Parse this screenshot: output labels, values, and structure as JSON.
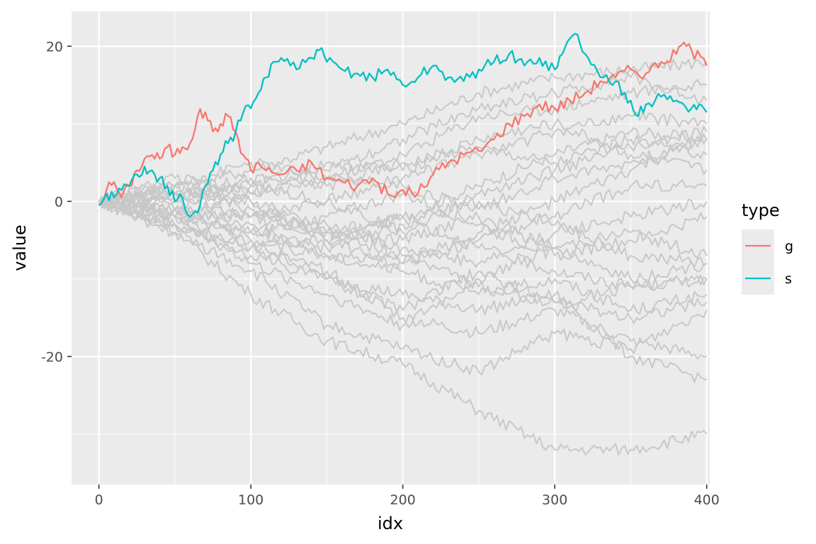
{
  "chart_data": {
    "type": "line",
    "xlabel": "idx",
    "ylabel": "value",
    "xlim": [
      -18,
      402
    ],
    "ylim": [
      -36.5,
      24.5
    ],
    "x_ticks": [
      0,
      100,
      200,
      300,
      400
    ],
    "x_tick_labels": [
      "0",
      "100",
      "200",
      "300",
      "400"
    ],
    "y_ticks": [
      -20,
      0,
      20
    ],
    "y_tick_labels": [
      "-20",
      "0",
      "20"
    ],
    "grid": true,
    "legend": {
      "title": "type",
      "position": "right",
      "entries": [
        {
          "label": "g",
          "color": "#F8766D"
        },
        {
          "label": "s",
          "color": "#00BFC4"
        }
      ]
    },
    "background_color": "#EBEBEB",
    "background_series_color": "#C8C8C8",
    "series": [
      {
        "name": "g",
        "color": "#F8766D",
        "x": [
          0,
          5,
          10,
          15,
          20,
          25,
          30,
          35,
          40,
          45,
          50,
          55,
          60,
          65,
          70,
          75,
          80,
          85,
          90,
          95,
          100,
          105,
          110,
          120,
          130,
          140,
          150,
          160,
          170,
          180,
          190,
          195,
          200,
          210,
          220,
          230,
          240,
          250,
          260,
          270,
          280,
          290,
          300,
          310,
          320,
          330,
          340,
          350,
          360,
          370,
          380,
          385,
          390,
          400
        ],
        "y": [
          -0.5,
          1.5,
          2.5,
          0.5,
          2,
          4,
          5.5,
          6,
          5.5,
          7,
          6,
          7,
          7.5,
          11,
          11.5,
          9,
          10,
          11,
          9,
          6,
          4,
          5,
          4,
          3.5,
          4,
          5,
          3,
          2.5,
          2,
          3,
          1,
          0.5,
          1.5,
          1,
          3.5,
          5,
          6,
          6.5,
          8,
          10,
          11,
          12.5,
          12,
          13,
          14,
          15.5,
          16,
          17,
          16.5,
          18,
          19,
          20.5,
          19.5,
          17.5
        ]
      },
      {
        "name": "s",
        "color": "#00BFC4",
        "x": [
          0,
          5,
          10,
          15,
          20,
          25,
          30,
          35,
          40,
          45,
          50,
          55,
          60,
          65,
          70,
          75,
          80,
          85,
          90,
          95,
          100,
          105,
          110,
          115,
          120,
          130,
          140,
          145,
          150,
          160,
          170,
          180,
          190,
          200,
          210,
          220,
          230,
          240,
          250,
          260,
          270,
          280,
          290,
          300,
          305,
          310,
          315,
          320,
          330,
          340,
          350,
          355,
          360,
          370,
          380,
          390,
          395,
          400
        ],
        "y": [
          -0.5,
          1,
          0.5,
          1.5,
          2,
          3.5,
          4.5,
          4,
          3,
          2,
          0,
          0.5,
          -2,
          -1.5,
          2,
          4,
          6,
          7.5,
          9,
          11.5,
          12,
          14,
          16,
          18,
          18.5,
          17,
          18.5,
          19.5,
          18,
          17,
          16.5,
          16,
          17,
          15,
          16,
          17.5,
          16,
          15.5,
          17,
          18,
          19,
          17.5,
          18.5,
          17,
          19,
          21,
          21.5,
          19,
          16,
          15.5,
          13,
          11,
          12.5,
          13.5,
          13,
          12,
          12.5,
          11.5
        ]
      }
    ],
    "background_series": [
      {
        "x": [
          0,
          50,
          100,
          150,
          200,
          250,
          300,
          350,
          400
        ],
        "y": [
          0,
          -3,
          -6,
          -5,
          -2,
          2,
          6,
          9,
          8
        ]
      },
      {
        "x": [
          0,
          50,
          100,
          150,
          200,
          250,
          300,
          350,
          400
        ],
        "y": [
          0,
          2,
          4,
          7,
          10,
          14,
          16,
          17,
          18
        ]
      },
      {
        "x": [
          0,
          50,
          100,
          150,
          200,
          250,
          300,
          350,
          400
        ],
        "y": [
          0,
          -1,
          -5,
          -10,
          -12,
          -14,
          -12,
          -20,
          -23
        ]
      },
      {
        "x": [
          0,
          50,
          100,
          150,
          200,
          250,
          300,
          350,
          400
        ],
        "y": [
          0,
          -4,
          -12,
          -18,
          -21,
          -27,
          -32,
          -32,
          -30
        ]
      },
      {
        "x": [
          0,
          50,
          100,
          150,
          200,
          250,
          300,
          350,
          400
        ],
        "y": [
          0,
          1,
          2,
          5,
          4,
          8,
          10,
          6,
          4
        ]
      },
      {
        "x": [
          0,
          50,
          100,
          150,
          200,
          250,
          300,
          350,
          400
        ],
        "y": [
          0,
          -2,
          -8,
          -12,
          -16,
          -10,
          -6,
          -10,
          -8
        ]
      },
      {
        "x": [
          0,
          50,
          100,
          150,
          200,
          250,
          300,
          350,
          400
        ],
        "y": [
          0,
          3,
          1,
          4,
          8,
          12,
          14,
          16,
          13
        ]
      },
      {
        "x": [
          0,
          50,
          100,
          150,
          200,
          250,
          300,
          350,
          400
        ],
        "y": [
          0,
          -1,
          0,
          -3,
          -6,
          -8,
          -4,
          -2,
          0
        ]
      },
      {
        "x": [
          0,
          50,
          100,
          150,
          200,
          250,
          300,
          350,
          400
        ],
        "y": [
          0,
          -3,
          -6,
          -9,
          -15,
          -17,
          -14,
          -18,
          -20
        ]
      },
      {
        "x": [
          0,
          50,
          100,
          150,
          200,
          250,
          300,
          350,
          400
        ],
        "y": [
          0,
          0,
          -2,
          0,
          3,
          6,
          9,
          11,
          10
        ]
      },
      {
        "x": [
          0,
          50,
          100,
          150,
          200,
          250,
          300,
          350,
          400
        ],
        "y": [
          0,
          2,
          -1,
          -4,
          -2,
          -6,
          -9,
          -11,
          -10
        ]
      },
      {
        "x": [
          0,
          50,
          100,
          150,
          200,
          250,
          300,
          350,
          400
        ],
        "y": [
          0,
          -2,
          -4,
          -2,
          1,
          -3,
          -7,
          -5,
          -2
        ]
      },
      {
        "x": [
          0,
          50,
          100,
          150,
          200,
          250,
          300,
          350,
          400
        ],
        "y": [
          0,
          1,
          3,
          2,
          5,
          7,
          5,
          8,
          6
        ]
      },
      {
        "x": [
          0,
          50,
          100,
          150,
          200,
          250,
          300,
          350,
          400
        ],
        "y": [
          0,
          -4,
          -9,
          -16,
          -19,
          -22,
          -17,
          -19,
          -14
        ]
      },
      {
        "x": [
          0,
          50,
          100,
          150,
          200,
          250,
          300,
          350,
          400
        ],
        "y": [
          0,
          -1,
          -3,
          -7,
          -9,
          -12,
          -10,
          -14,
          -12
        ]
      },
      {
        "x": [
          0,
          50,
          100,
          150,
          200,
          250,
          300,
          350,
          400
        ],
        "y": [
          0,
          2,
          0,
          -5,
          -8,
          -5,
          -2,
          2,
          2
        ]
      },
      {
        "x": [
          0,
          50,
          100,
          150,
          200,
          250,
          300,
          350,
          400
        ],
        "y": [
          0,
          -2,
          -5,
          -7,
          -8,
          -4,
          0,
          4,
          8
        ]
      },
      {
        "x": [
          0,
          50,
          100,
          150,
          200,
          250,
          300,
          350,
          400
        ],
        "y": [
          0,
          -1,
          -4,
          -6,
          -3,
          0,
          -3,
          -7,
          -8
        ]
      },
      {
        "x": [
          0,
          50,
          100,
          150,
          200,
          250,
          300,
          350,
          400
        ],
        "y": [
          0,
          1,
          -2,
          -4,
          -7,
          -11,
          -13,
          -11,
          -10
        ]
      },
      {
        "x": [
          0,
          50,
          100,
          150,
          200,
          250,
          300,
          350,
          400
        ],
        "y": [
          0,
          0,
          2,
          0,
          -4,
          1,
          4,
          7,
          9
        ]
      },
      {
        "x": [
          0,
          50,
          100,
          150,
          200,
          250,
          300,
          350,
          400
        ],
        "y": [
          0,
          -3,
          -7,
          -10,
          -14,
          -9,
          -13,
          -15,
          -13
        ]
      },
      {
        "x": [
          0,
          50,
          100,
          150,
          200,
          250,
          300,
          350,
          400
        ],
        "y": [
          0,
          2,
          5,
          3,
          6,
          11,
          12,
          14,
          15
        ]
      },
      {
        "x": [
          0,
          50,
          100,
          150,
          200,
          250,
          300,
          350,
          400
        ],
        "y": [
          0,
          -2,
          -2,
          -4,
          -5,
          -2,
          -6,
          -4,
          -7
        ]
      },
      {
        "x": [
          0,
          50,
          100,
          150,
          200,
          250,
          300,
          350,
          400
        ],
        "y": [
          0,
          1,
          1,
          3,
          2,
          -1,
          3,
          5,
          8
        ]
      }
    ]
  }
}
